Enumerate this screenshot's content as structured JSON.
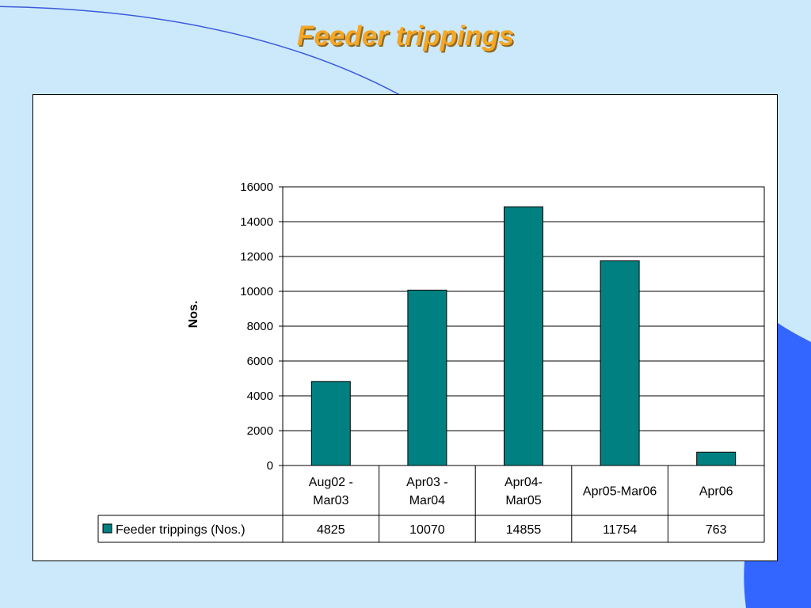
{
  "slide": {
    "title": "Feeder trippings"
  },
  "colors": {
    "background": "#cce9fb",
    "accent_shape": "#3366ff",
    "bar_fill": "#008080",
    "title": "#f5a623"
  },
  "chart_data": {
    "type": "bar",
    "title": "",
    "xlabel": "",
    "ylabel": "Nos.",
    "ylim": [
      0,
      16000
    ],
    "yticks": [
      0,
      2000,
      4000,
      6000,
      8000,
      10000,
      12000,
      14000,
      16000
    ],
    "grid": true,
    "categories": [
      [
        "Aug02 -",
        "Mar03"
      ],
      [
        "Apr03 -",
        "Mar04"
      ],
      [
        "Apr04-",
        "Mar05"
      ],
      [
        "Apr05-Mar06"
      ],
      [
        "Apr06"
      ]
    ],
    "series": [
      {
        "name": "Feeder trippings (Nos.)",
        "color": "#008080",
        "values": [
          4825,
          10070,
          14855,
          11754,
          763
        ]
      }
    ],
    "data_table": true
  }
}
